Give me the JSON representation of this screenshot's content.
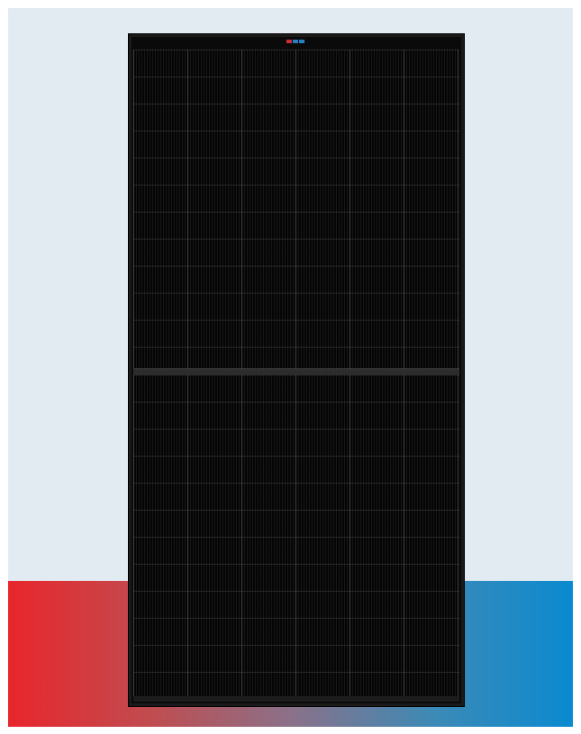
{
  "colors": {
    "backdrop": "#e3ebf2",
    "gradient_left": "#e8262c",
    "gradient_right": "#0a8ad0",
    "panel_frame": "#1a1a1a",
    "panel_cells": "#050505",
    "logo_red": "#c8313a",
    "logo_blue": "#2a7fc1"
  },
  "icons": {
    "panel": "solar-panel-icon",
    "logo": "brand-logo-mark"
  }
}
